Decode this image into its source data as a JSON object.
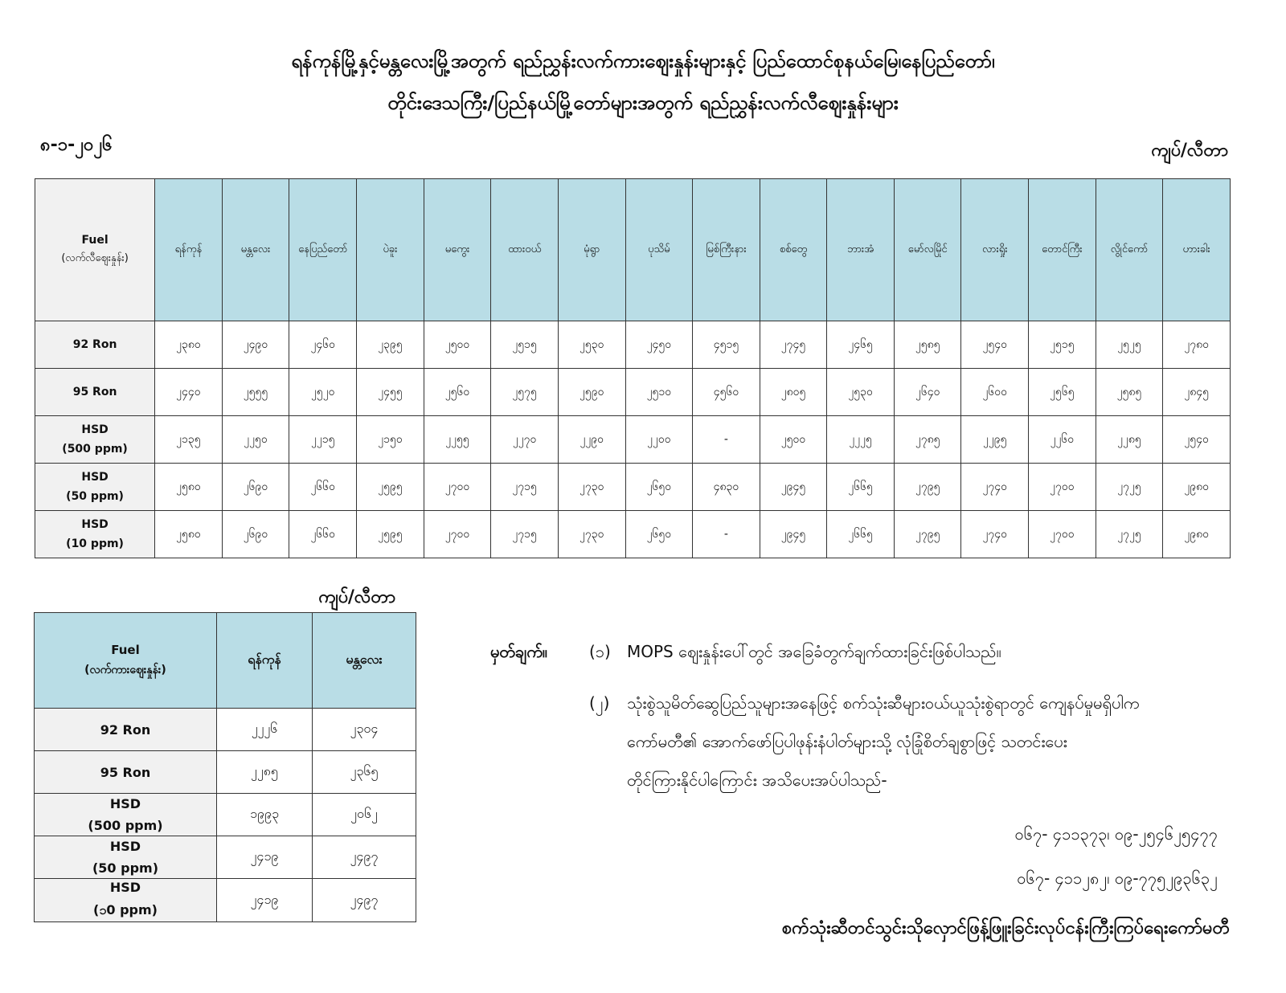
{
  "header": {
    "title_line1": "ရန်ကုန်မြို့နှင့်မန္တလေးမြို့အတွက် ရည်ညွှန်းလက်ကားဈေးနှုန်းများနှင့် ပြည်ထောင်စုနယ်မြေ၊နေပြည်တော်၊",
    "title_line2": "တိုင်းဒေသကြီး/ပြည်နယ်မြို့တော်များအတွက် ရည်ညွှန်းလက်လီဈေးနှုန်းများ",
    "date": "၈-၁-၂၀၂၆",
    "unit": "ကျပ်/လီတာ"
  },
  "retail_table": {
    "fuel_header": "Fuel",
    "fuel_subheader": "(လက်လီဈေးနှုန်း)",
    "cities": [
      "ရန်ကုန်",
      "မန္တလေး",
      "နေပြည်တော်",
      "ပဲခူး",
      "မကွေး",
      "ထားဝယ်",
      "မုံရွာ",
      "ပုသိမ်",
      "မြစ်ကြီးနား",
      "စစ်တွေ",
      "ဘားအံ",
      "မော်လမြိုင်",
      "လားရှိုး",
      "တောင်ကြီး",
      "လွိုင်ကော်",
      "ဟားခါး"
    ],
    "rows": [
      {
        "fuel": "92 Ron",
        "sub": "",
        "values": [
          "၂၃၈၀",
          "၂၄၉၀",
          "၂၄၆၀",
          "၂၃၉၅",
          "၂၅၀၀",
          "၂၅၁၅",
          "၂၅၃၀",
          "၂၄၅၀",
          "၄၅၁၅",
          "၂၇၄၅",
          "၂၄၆၅",
          "၂၅၈၅",
          "၂၅၄၀",
          "၂၅၁၅",
          "၂၅၂၅",
          "၂၇၈၀"
        ]
      },
      {
        "fuel": "95 Ron",
        "sub": "",
        "values": [
          "၂၄၄၀",
          "၂၅၅၅",
          "၂၅၂၀",
          "၂၄၅၅",
          "၂၅၆၀",
          "၂၅၇၅",
          "၂၅၉၀",
          "၂၅၁၀",
          "၄၅၆၀",
          "၂၈၀၅",
          "၂၅၃၀",
          "၂၆၄၀",
          "၂၆၀၀",
          "၂၅၆၅",
          "၂၅၈၅",
          "၂၈၄၅"
        ]
      },
      {
        "fuel": "HSD",
        "sub": "(500 ppm)",
        "values": [
          "၂၁၃၅",
          "၂၂၅၀",
          "၂၂၁၅",
          "၂၁၅၀",
          "၂၂၅၅",
          "၂၂၇၀",
          "၂၂၉၀",
          "၂၂၀၀",
          "-",
          "၂၅၀၀",
          "၂၂၂၅",
          "၂၇၈၅",
          "၂၂၉၅",
          "၂၂၆၀",
          "၂၂၈၅",
          "၂၅၄၀"
        ]
      },
      {
        "fuel": "HSD",
        "sub": "(50 ppm)",
        "values": [
          "၂၅၈၀",
          "၂၆၉၀",
          "၂၆၆၀",
          "၂၅၉၅",
          "၂၇၀၀",
          "၂၇၁၅",
          "၂၇၃၀",
          "၂၆၅၀",
          "၄၈၃၀",
          "၂၉၄၅",
          "၂၆၆၅",
          "၂၇၉၅",
          "၂၇၄၀",
          "၂၇၀၀",
          "၂၇၂၅",
          "၂၉၈၀"
        ]
      },
      {
        "fuel": "HSD",
        "sub": "(10 ppm)",
        "values": [
          "၂၅၈၀",
          "၂၆၉၀",
          "၂၆၆၀",
          "၂၅၉၅",
          "၂၇၀၀",
          "၂၇၁၅",
          "၂၇၃၀",
          "၂၆၅၀",
          "-",
          "၂၉၄၅",
          "၂၆၆၅",
          "၂၇၉၅",
          "၂၇၄၀",
          "၂၇၀၀",
          "၂၇၂၅",
          "၂၉၈၀"
        ]
      }
    ]
  },
  "wholesale_table": {
    "unit": "ကျပ်/လီတာ",
    "fuel_header": "Fuel",
    "fuel_subheader": "(လက်ကားဈေးနှုန်း)",
    "cities": [
      "ရန်ကုန်",
      "မန္တလေး"
    ],
    "rows": [
      {
        "fuel": "92 Ron",
        "sub": "",
        "values": [
          "၂၂၂၆",
          "၂၃၀၄"
        ]
      },
      {
        "fuel": "95 Ron",
        "sub": "",
        "values": [
          "၂၂၈၅",
          "၂၃၆၅"
        ]
      },
      {
        "fuel": "HSD",
        "sub": "(500 ppm)",
        "values": [
          "၁၉၉၃",
          "၂၀၆၂"
        ]
      },
      {
        "fuel": "HSD",
        "sub": "(50 ppm)",
        "values": [
          "၂၄၁၉",
          "၂၄၉၇"
        ]
      },
      {
        "fuel": "HSD",
        "sub": "(၁0 ppm)",
        "values": [
          "၂၄၁၉",
          "၂၄၉၇"
        ]
      }
    ]
  },
  "notes": {
    "label": "မှတ်ချက်။",
    "items": [
      {
        "num": "(၁)",
        "lines": [
          "MOPS ဈေးနှုန်းပေါ်တွင် အခြေခံတွက်ချက်ထားခြင်းဖြစ်ပါသည်။"
        ]
      },
      {
        "num": "(၂)",
        "lines": [
          "သုံးစွဲသူမိတ်ဆွေပြည်သူများအနေဖြင့် စက်သုံးဆီများဝယ်ယူသုံးစွဲရာတွင် ကျေနပ်မှုမရှိပါက",
          "ကော်မတီ၏ အောက်ဖော်ပြပါဖုန်းနံပါတ်များသို့ လုံခြုံစိတ်ချစွာဖြင့် သတင်းပေး",
          "တိုင်ကြားနိုင်ပါကြောင်း အသိပေးအပ်ပါသည်-"
        ]
      }
    ],
    "phones": [
      "၀၆၇- ၄၁၁၃၇၃၊ ၀၉-၂၅၄၆၂၅၄၇၇",
      "၀၆၇- ၄၁၁၂၈၂၊ ၀၉-၇၇၅၂၉၃၆၃၂"
    ],
    "signature": "စက်သုံးဆီတင်သွင်းသိုလှောင်ဖြန့်ဖြူးခြင်းလုပ်ငန်းကြီးကြပ်ရေးကော်မတီ"
  }
}
